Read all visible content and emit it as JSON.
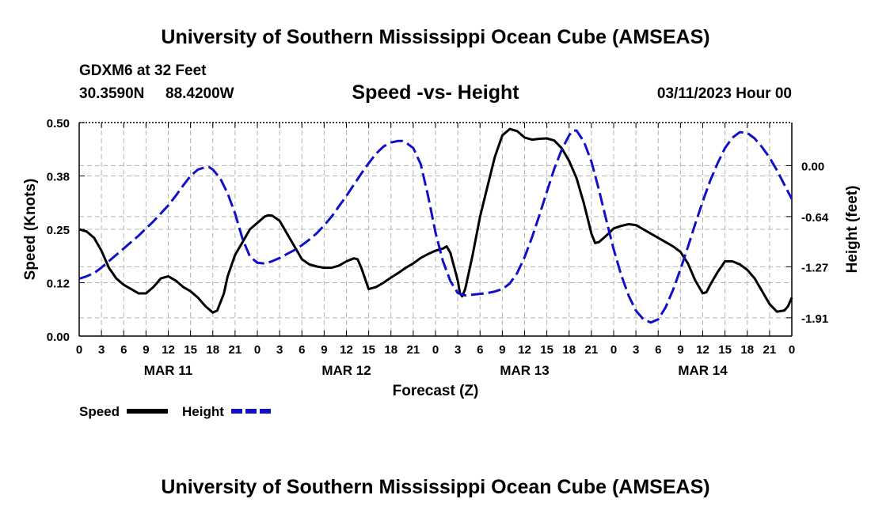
{
  "title": "University of Southern Mississippi Ocean Cube (AMSEAS)",
  "footer_title": "University of Southern Mississippi Ocean Cube (AMSEAS)",
  "station": {
    "name": "GDXM6 at 32 Feet",
    "lat": "30.3590N",
    "lon": "88.4200W"
  },
  "subtitle": "Speed -vs- Height",
  "datetime": "03/11/2023 Hour 00",
  "legend": [
    {
      "name": "Speed",
      "color": "#000000",
      "dash": "solid"
    },
    {
      "name": "Height",
      "color": "#1010c8",
      "dash": "dashed"
    }
  ],
  "chart_data": {
    "type": "line",
    "title": "Speed -vs- Height",
    "xlabel": "Forecast (Z)",
    "ylabel_left": "Speed (Knots)",
    "ylabel_right": "Height (feet)",
    "x_range_hours": [
      0,
      96
    ],
    "x_tick_labels": [
      "0",
      "3",
      "6",
      "9",
      "12",
      "15",
      "18",
      "21",
      "0",
      "3",
      "6",
      "9",
      "12",
      "15",
      "18",
      "21",
      "0",
      "3",
      "6",
      "9",
      "12",
      "15",
      "18",
      "21",
      "0",
      "3",
      "6",
      "9",
      "12",
      "15",
      "18",
      "21",
      "0"
    ],
    "day_labels": [
      {
        "label": "MAR 11",
        "hour": 12
      },
      {
        "label": "MAR 12",
        "hour": 36
      },
      {
        "label": "MAR 13",
        "hour": 60
      },
      {
        "label": "MAR 14",
        "hour": 84
      }
    ],
    "y_left": {
      "range": [
        0.0,
        0.5
      ],
      "tick_labels": [
        "0.00",
        "0.12",
        "0.25",
        "0.38",
        "0.50"
      ],
      "tick_values": [
        0.0,
        0.125,
        0.25,
        0.375,
        0.5
      ]
    },
    "y_right": {
      "range": [
        -2.14,
        0.54
      ],
      "tick_labels": [
        "-1.91",
        "-1.27",
        "-0.64",
        "0.00"
      ],
      "tick_values": [
        -1.91,
        -1.27,
        -0.64,
        0.0
      ]
    },
    "grid": true,
    "series": [
      {
        "name": "Speed",
        "axis": "left",
        "color": "#000000",
        "points": [
          [
            0,
            0.25
          ],
          [
            1,
            0.245
          ],
          [
            2,
            0.23
          ],
          [
            3,
            0.2
          ],
          [
            4,
            0.16
          ],
          [
            5,
            0.135
          ],
          [
            6,
            0.12
          ],
          [
            7,
            0.11
          ],
          [
            8,
            0.1
          ],
          [
            9,
            0.1
          ],
          [
            10,
            0.115
          ],
          [
            11,
            0.135
          ],
          [
            12,
            0.14
          ],
          [
            13,
            0.13
          ],
          [
            14,
            0.115
          ],
          [
            15,
            0.105
          ],
          [
            16,
            0.09
          ],
          [
            17,
            0.07
          ],
          [
            18,
            0.055
          ],
          [
            18.6,
            0.06
          ],
          [
            19.5,
            0.1
          ],
          [
            20,
            0.14
          ],
          [
            21,
            0.19
          ],
          [
            22,
            0.22
          ],
          [
            23,
            0.25
          ],
          [
            24,
            0.265
          ],
          [
            25,
            0.28
          ],
          [
            25.5,
            0.283
          ],
          [
            26,
            0.282
          ],
          [
            27,
            0.27
          ],
          [
            28,
            0.24
          ],
          [
            29,
            0.21
          ],
          [
            30,
            0.18
          ],
          [
            31,
            0.168
          ],
          [
            32,
            0.163
          ],
          [
            33,
            0.16
          ],
          [
            34,
            0.16
          ],
          [
            35,
            0.165
          ],
          [
            36,
            0.175
          ],
          [
            37,
            0.182
          ],
          [
            37.5,
            0.18
          ],
          [
            38,
            0.16
          ],
          [
            39,
            0.11
          ],
          [
            40,
            0.115
          ],
          [
            41,
            0.125
          ],
          [
            42,
            0.137
          ],
          [
            43,
            0.148
          ],
          [
            44,
            0.16
          ],
          [
            45,
            0.17
          ],
          [
            46,
            0.183
          ],
          [
            47,
            0.192
          ],
          [
            48,
            0.2
          ],
          [
            49,
            0.205
          ],
          [
            49.5,
            0.21
          ],
          [
            50,
            0.195
          ],
          [
            51,
            0.13
          ],
          [
            51.3,
            0.1
          ],
          [
            51.6,
            0.093
          ],
          [
            52,
            0.11
          ],
          [
            53,
            0.19
          ],
          [
            54,
            0.28
          ],
          [
            55,
            0.35
          ],
          [
            56,
            0.42
          ],
          [
            57,
            0.47
          ],
          [
            58,
            0.485
          ],
          [
            59,
            0.48
          ],
          [
            60,
            0.465
          ],
          [
            61,
            0.46
          ],
          [
            62,
            0.462
          ],
          [
            63,
            0.463
          ],
          [
            64,
            0.458
          ],
          [
            65,
            0.44
          ],
          [
            66,
            0.41
          ],
          [
            67,
            0.37
          ],
          [
            68,
            0.31
          ],
          [
            69,
            0.24
          ],
          [
            69.5,
            0.218
          ],
          [
            70,
            0.22
          ],
          [
            71,
            0.235
          ],
          [
            72,
            0.252
          ],
          [
            73,
            0.258
          ],
          [
            74,
            0.262
          ],
          [
            75,
            0.26
          ],
          [
            76,
            0.25
          ],
          [
            77,
            0.24
          ],
          [
            78,
            0.23
          ],
          [
            79,
            0.22
          ],
          [
            80,
            0.21
          ],
          [
            81,
            0.197
          ],
          [
            82,
            0.17
          ],
          [
            83,
            0.13
          ],
          [
            84,
            0.1
          ],
          [
            84.5,
            0.103
          ],
          [
            85,
            0.12
          ],
          [
            86,
            0.15
          ],
          [
            87,
            0.175
          ],
          [
            88,
            0.175
          ],
          [
            89,
            0.168
          ],
          [
            90,
            0.155
          ],
          [
            91,
            0.135
          ],
          [
            92,
            0.105
          ],
          [
            93,
            0.075
          ],
          [
            94,
            0.057
          ],
          [
            95,
            0.06
          ],
          [
            95.5,
            0.07
          ],
          [
            96,
            0.09
          ]
        ]
      },
      {
        "name": "Height",
        "axis": "right",
        "color": "#1010c8",
        "points": [
          [
            0,
            -1.42
          ],
          [
            1,
            -1.39
          ],
          [
            2,
            -1.35
          ],
          [
            3,
            -1.28
          ],
          [
            4,
            -1.2
          ],
          [
            5,
            -1.12
          ],
          [
            6,
            -1.04
          ],
          [
            7,
            -0.96
          ],
          [
            8,
            -0.88
          ],
          [
            9,
            -0.79
          ],
          [
            10,
            -0.7
          ],
          [
            11,
            -0.6
          ],
          [
            12,
            -0.5
          ],
          [
            13,
            -0.38
          ],
          [
            14,
            -0.25
          ],
          [
            15,
            -0.13
          ],
          [
            16,
            -0.05
          ],
          [
            17,
            -0.02
          ],
          [
            17.5,
            -0.02
          ],
          [
            18,
            -0.05
          ],
          [
            19,
            -0.16
          ],
          [
            20,
            -0.35
          ],
          [
            21,
            -0.6
          ],
          [
            22,
            -0.92
          ],
          [
            23,
            -1.14
          ],
          [
            24,
            -1.22
          ],
          [
            25,
            -1.23
          ],
          [
            26,
            -1.2
          ],
          [
            27,
            -1.16
          ],
          [
            28,
            -1.11
          ],
          [
            29,
            -1.06
          ],
          [
            30,
            -1.0
          ],
          [
            31,
            -0.93
          ],
          [
            32,
            -0.85
          ],
          [
            33,
            -0.75
          ],
          [
            34,
            -0.64
          ],
          [
            35,
            -0.51
          ],
          [
            36,
            -0.38
          ],
          [
            37,
            -0.24
          ],
          [
            38,
            -0.1
          ],
          [
            39,
            0.03
          ],
          [
            40,
            0.15
          ],
          [
            41,
            0.24
          ],
          [
            42,
            0.29
          ],
          [
            43,
            0.31
          ],
          [
            43.5,
            0.31
          ],
          [
            44,
            0.29
          ],
          [
            45,
            0.22
          ],
          [
            46,
            0.02
          ],
          [
            47,
            -0.38
          ],
          [
            48,
            -0.84
          ],
          [
            49,
            -1.2
          ],
          [
            50,
            -1.45
          ],
          [
            51,
            -1.6
          ],
          [
            52,
            -1.63
          ],
          [
            53,
            -1.62
          ],
          [
            54,
            -1.61
          ],
          [
            55,
            -1.6
          ],
          [
            56,
            -1.58
          ],
          [
            57,
            -1.55
          ],
          [
            58,
            -1.48
          ],
          [
            59,
            -1.35
          ],
          [
            60,
            -1.15
          ],
          [
            61,
            -0.9
          ],
          [
            62,
            -0.62
          ],
          [
            63,
            -0.33
          ],
          [
            64,
            -0.04
          ],
          [
            65,
            0.2
          ],
          [
            66,
            0.38
          ],
          [
            66.5,
            0.44
          ],
          [
            67,
            0.44
          ],
          [
            68,
            0.3
          ],
          [
            69,
            0.05
          ],
          [
            70,
            -0.3
          ],
          [
            71,
            -0.68
          ],
          [
            72,
            -1.05
          ],
          [
            73,
            -1.37
          ],
          [
            74,
            -1.63
          ],
          [
            75,
            -1.82
          ],
          [
            76,
            -1.93
          ],
          [
            77,
            -1.97
          ],
          [
            78,
            -1.93
          ],
          [
            79,
            -1.78
          ],
          [
            80,
            -1.56
          ],
          [
            81,
            -1.3
          ],
          [
            82,
            -1.02
          ],
          [
            83,
            -0.73
          ],
          [
            84,
            -0.45
          ],
          [
            85,
            -0.19
          ],
          [
            86,
            0.03
          ],
          [
            87,
            0.22
          ],
          [
            88,
            0.35
          ],
          [
            89,
            0.42
          ],
          [
            90,
            0.41
          ],
          [
            91,
            0.34
          ],
          [
            92,
            0.23
          ],
          [
            93,
            0.1
          ],
          [
            94,
            -0.06
          ],
          [
            95,
            -0.24
          ],
          [
            96,
            -0.42
          ]
        ]
      }
    ]
  }
}
